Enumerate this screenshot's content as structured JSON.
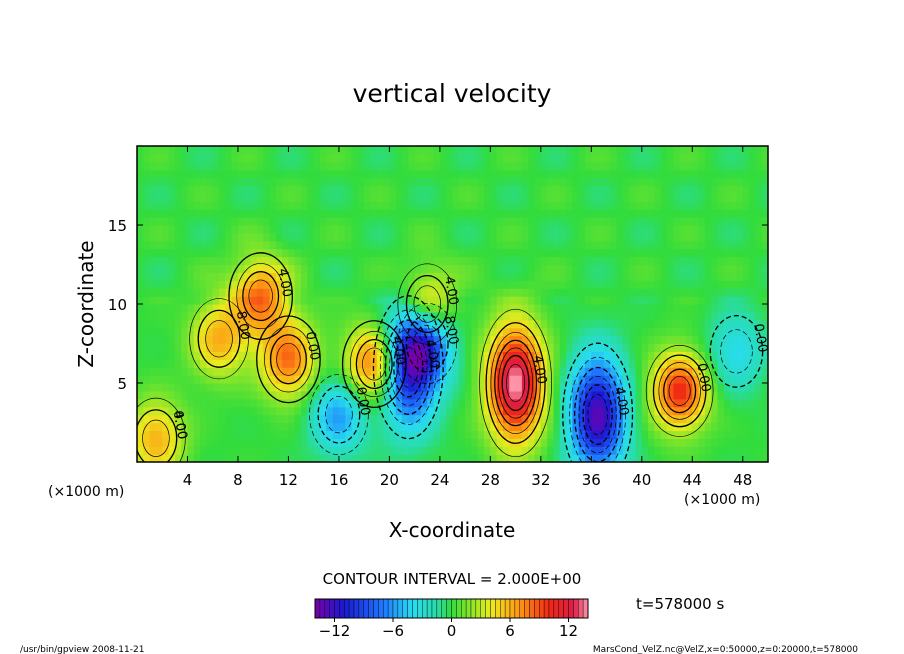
{
  "chart_data": {
    "type": "heatmap",
    "title": "vertical velocity",
    "xlabel": "X-coordinate",
    "ylabel": "Z-coordinate",
    "x_unit_left": "(×1000 m)",
    "x_unit_right": "(×1000 m)",
    "xlim": [
      0,
      50
    ],
    "ylim": [
      0,
      20
    ],
    "x_ticks": [
      4,
      8,
      12,
      16,
      20,
      24,
      28,
      32,
      36,
      40,
      44,
      48
    ],
    "x_tick_labels": [
      "4",
      "8",
      "12",
      "16",
      "20",
      "24",
      "28",
      "32",
      "36",
      "40",
      "44",
      "48"
    ],
    "y_ticks": [
      5,
      10,
      15
    ],
    "y_tick_labels": [
      "5",
      "10",
      "15"
    ],
    "contour_interval_text": "CONTOUR INTERVAL = 2.000E+00",
    "time_text": "t=578000 s",
    "colorbar": {
      "range": [
        -14,
        14
      ],
      "ticks": [
        -12,
        -6,
        0,
        6,
        12
      ],
      "tick_labels": [
        "−12",
        "−6",
        "0",
        "6",
        "12"
      ]
    },
    "contour_labels": [
      "4.00",
      "8.00",
      "4.00",
      "0.00",
      "0.00",
      "4.00",
      "4.00",
      "8.00",
      "4.00",
      "4.00",
      "4.00",
      "0.00",
      "0.00",
      "0.00"
    ],
    "features": [
      {
        "kind": "updraft",
        "x": 1.5,
        "z": 1.5,
        "peak": 6
      },
      {
        "kind": "updraft",
        "x": 6.5,
        "z": 7.8,
        "peak": 6
      },
      {
        "kind": "updraft",
        "x": 9.8,
        "z": 10.5,
        "peak": 8
      },
      {
        "kind": "updraft",
        "x": 12.0,
        "z": 6.5,
        "peak": 8
      },
      {
        "kind": "downdraft",
        "x": 16.0,
        "z": 3.0,
        "peak": -6
      },
      {
        "kind": "updraft",
        "x": 18.8,
        "z": 6.2,
        "peak": 9
      },
      {
        "kind": "downdraft",
        "x": 21.5,
        "z": 6.0,
        "peak": -12
      },
      {
        "kind": "downdraft",
        "x": 23.0,
        "z": 7.5,
        "peak": -7
      },
      {
        "kind": "updraft",
        "x": 23.0,
        "z": 10.0,
        "peak": 6
      },
      {
        "kind": "updraft",
        "x": 30.0,
        "z": 5.0,
        "peak": 14
      },
      {
        "kind": "downdraft",
        "x": 36.5,
        "z": 3.0,
        "peak": -13
      },
      {
        "kind": "updraft",
        "x": 43.0,
        "z": 4.5,
        "peak": 10
      },
      {
        "kind": "downdraft",
        "x": 47.5,
        "z": 7.0,
        "peak": -4
      }
    ]
  },
  "footer": {
    "left": "/usr/bin/gpview  2008-11-21",
    "right": "MarsCond_VelZ.nc@VelZ,x=0:50000,z=0:20000,t=578000"
  }
}
